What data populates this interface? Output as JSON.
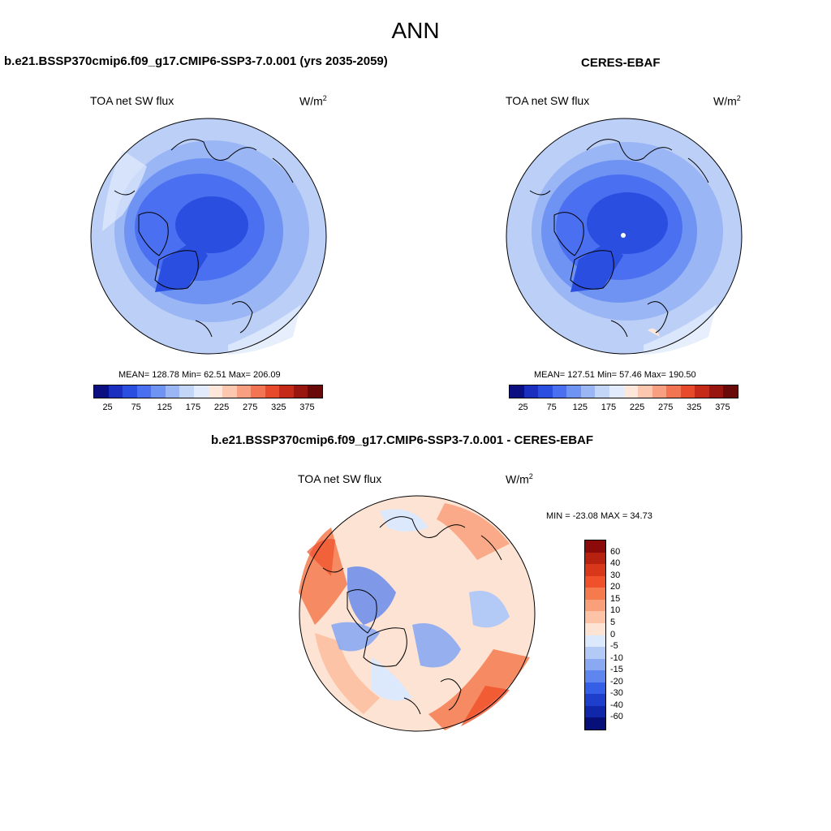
{
  "main_title": "ANN",
  "panels": [
    {
      "title": "b.e21.BSSP370cmip6.f09_g17.CMIP6-SSP3-7.0.001 (yrs 2035-2059)",
      "var_label": "TOA net SW flux",
      "units": "W/m",
      "units_sup": "2",
      "stats": "MEAN= 128.78  Min=  62.51  Max= 206.09"
    },
    {
      "title": "CERES-EBAF",
      "var_label": "TOA net SW flux",
      "units": "W/m",
      "units_sup": "2",
      "stats": "MEAN= 127.51  Min=  57.46  Max= 190.50"
    },
    {
      "title": "b.e21.BSSP370cmip6.f09_g17.CMIP6-SSP3-7.0.001 - CERES-EBAF",
      "var_label": "TOA net SW flux",
      "units": "W/m",
      "units_sup": "2",
      "stats": "MIN = -23.08 MAX =  34.73"
    }
  ],
  "colorbar_abs": {
    "ticks": [
      "25",
      "75",
      "125",
      "175",
      "225",
      "275",
      "325",
      "375"
    ],
    "colors": [
      "#0b0f82",
      "#1a2fbf",
      "#2a4fe0",
      "#4a6ff0",
      "#6f93f3",
      "#9bb6f5",
      "#c4d6f7",
      "#e1ebfb",
      "#fde7da",
      "#fbc7ae",
      "#f79f80",
      "#f27452",
      "#e64a2a",
      "#c52a18",
      "#991510",
      "#6a0a08"
    ]
  },
  "colorbar_diff": {
    "ticks": [
      "60",
      "40",
      "30",
      "20",
      "15",
      "10",
      "5",
      "0",
      "-5",
      "-10",
      "-15",
      "-20",
      "-30",
      "-40",
      "-60"
    ],
    "colors": [
      "#8b0a0a",
      "#b6220f",
      "#d8371a",
      "#f0502a",
      "#f57a4e",
      "#f9a07a",
      "#fcc3a6",
      "#fde3d3",
      "#dce8fb",
      "#b3c9f6",
      "#8aa9f2",
      "#5f86ee",
      "#345fe6",
      "#1d3fcc",
      "#0f27a8",
      "#070f78"
    ]
  }
}
